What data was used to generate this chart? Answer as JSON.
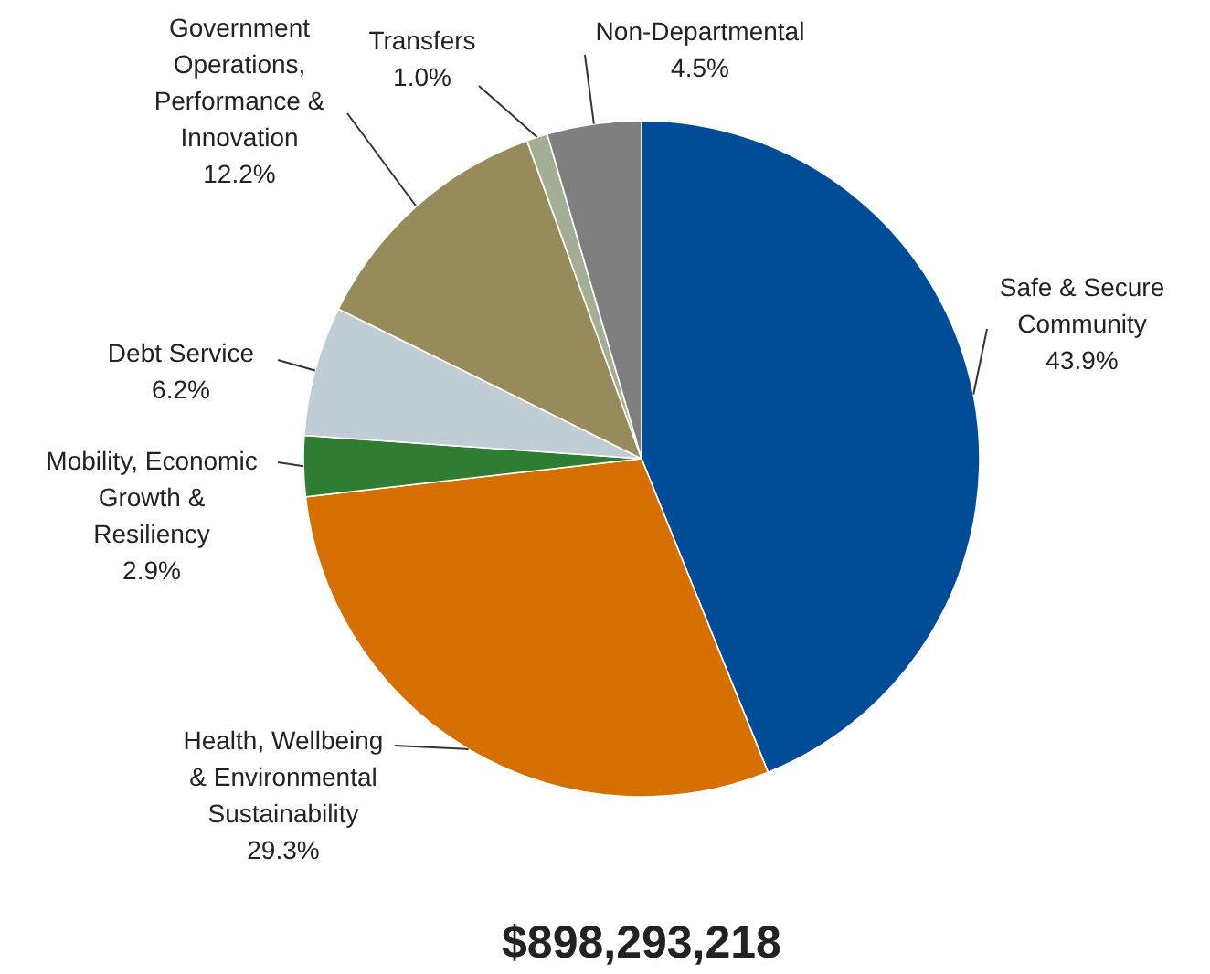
{
  "chart_data": {
    "type": "pie",
    "title": "$898,293,218",
    "categories": [
      "Safe & Secure Community",
      "Health, Wellbeing & Environmental Sustainability",
      "Mobility, Economic Growth & Resiliency",
      "Debt Service",
      "Government Operations, Performance & Innovation",
      "Transfers",
      "Non-Departmental"
    ],
    "values": [
      43.9,
      29.3,
      2.9,
      6.2,
      12.2,
      1.0,
      4.5
    ],
    "colors": [
      "#004c97",
      "#d46f00",
      "#2e7d32",
      "#c1cdd5",
      "#978b5b",
      "#a3ae97",
      "#7f7f7f"
    ],
    "value_labels": [
      "43.9%",
      "29.3%",
      "2.9%",
      "6.2%",
      "12.2%",
      "1.0%",
      "4.5%"
    ]
  }
}
